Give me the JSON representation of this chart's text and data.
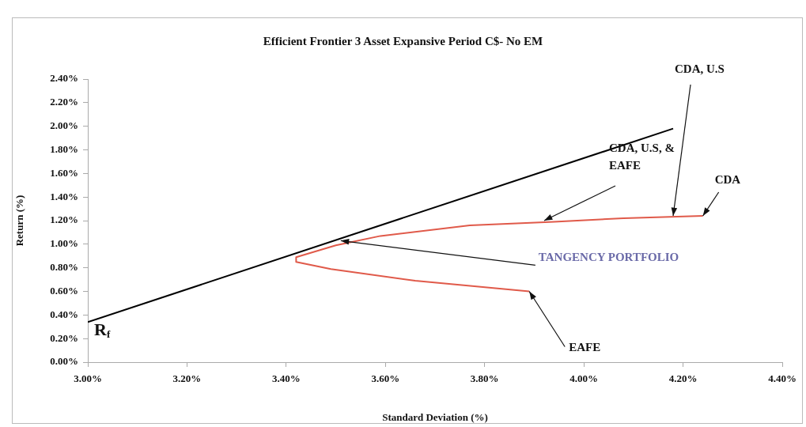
{
  "chart_data": {
    "type": "line",
    "title": "Efficient Frontier 3 Asset Expansive Period C$- No EM",
    "xlabel": "Standard Deviation (%)",
    "ylabel": "Return (%)",
    "xlim": [
      3.0,
      4.4
    ],
    "xticks": [
      {
        "value": 3.0,
        "label": "3.00%"
      },
      {
        "value": 3.2,
        "label": "3.20%"
      },
      {
        "value": 3.4,
        "label": "3.40%"
      },
      {
        "value": 3.6,
        "label": "3.60%"
      },
      {
        "value": 3.8,
        "label": "3.80%"
      },
      {
        "value": 4.0,
        "label": "4.00%"
      },
      {
        "value": 4.2,
        "label": "4.20%"
      },
      {
        "value": 4.4,
        "label": "4.40%"
      }
    ],
    "ylim": [
      0,
      2.4
    ],
    "yticks": [
      {
        "value": 0,
        "label": "0.00%"
      },
      {
        "value": 0.2,
        "label": "0.20%"
      },
      {
        "value": 0.4,
        "label": "0.40%"
      },
      {
        "value": 0.6,
        "label": "0.60%"
      },
      {
        "value": 0.8,
        "label": "0.80%"
      },
      {
        "value": 1.0,
        "label": "1.00%"
      },
      {
        "value": 1.2,
        "label": "1.20%"
      },
      {
        "value": 1.4,
        "label": "1.40%"
      },
      {
        "value": 1.6,
        "label": "1.60%"
      },
      {
        "value": 1.8,
        "label": "1.80%"
      },
      {
        "value": 2.0,
        "label": "2.00%"
      },
      {
        "value": 2.2,
        "label": "2.20%"
      },
      {
        "value": 2.4,
        "label": "2.40%"
      }
    ],
    "series": [
      {
        "color": "#000000",
        "x": [
          3.0,
          4.18
        ],
        "values": [
          0.34,
          1.98
        ]
      },
      {
        "color": "#e05a4a",
        "x": [
          3.89,
          3.66,
          3.49,
          3.42,
          3.42,
          3.5,
          3.59,
          3.77,
          3.94,
          4.08,
          4.24
        ],
        "values": [
          0.6,
          0.69,
          0.79,
          0.85,
          0.89,
          0.99,
          1.07,
          1.16,
          1.19,
          1.22,
          1.24
        ]
      }
    ],
    "annotations": [
      {
        "text": "CDA, U.S",
        "x": 4.18,
        "y": 1.24
      },
      {
        "text": "CDA, U.S, & EAFE",
        "x": 3.92,
        "y": 1.2
      },
      {
        "text": "CDA",
        "x": 4.24,
        "y": 1.24
      },
      {
        "text": "TANGENCY PORTFOLIO",
        "x": 3.51,
        "y": 1.03
      },
      {
        "text": "EAFE",
        "x": 3.89,
        "y": 0.6
      },
      "R$_{f}$"
    ],
    "grid": false,
    "legend": false,
    "marker": "none",
    "line_style": "solid"
  }
}
